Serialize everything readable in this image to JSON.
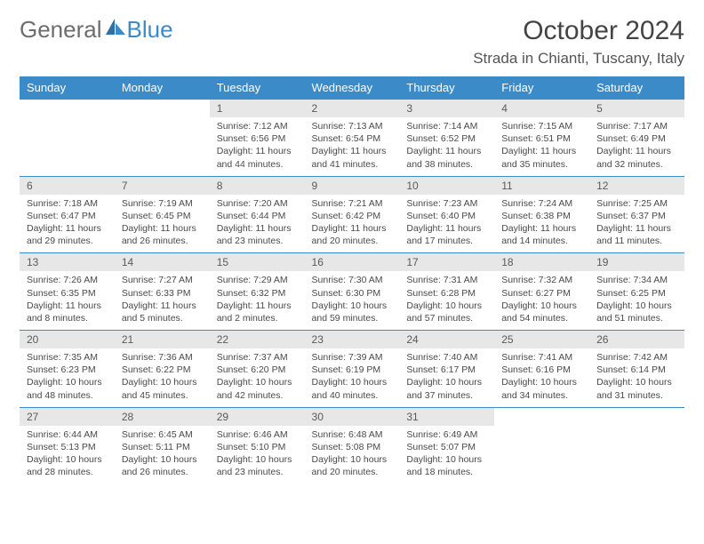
{
  "brand": {
    "word1": "General",
    "word2": "Blue"
  },
  "title": "October 2024",
  "location": "Strada in Chianti, Tuscany, Italy",
  "colors": {
    "header_bg": "#3b8bc9",
    "header_text": "#ffffff",
    "daynum_bg": "#e7e7e7",
    "row_border": "#3b8bc9",
    "brand_gray": "#6d6d6d",
    "brand_blue": "#3b8bc9"
  },
  "weekdays": [
    "Sunday",
    "Monday",
    "Tuesday",
    "Wednesday",
    "Thursday",
    "Friday",
    "Saturday"
  ],
  "weeks": [
    [
      {
        "day": "",
        "sunrise": "",
        "sunset": "",
        "daylight": ""
      },
      {
        "day": "",
        "sunrise": "",
        "sunset": "",
        "daylight": ""
      },
      {
        "day": "1",
        "sunrise": "Sunrise: 7:12 AM",
        "sunset": "Sunset: 6:56 PM",
        "daylight": "Daylight: 11 hours and 44 minutes."
      },
      {
        "day": "2",
        "sunrise": "Sunrise: 7:13 AM",
        "sunset": "Sunset: 6:54 PM",
        "daylight": "Daylight: 11 hours and 41 minutes."
      },
      {
        "day": "3",
        "sunrise": "Sunrise: 7:14 AM",
        "sunset": "Sunset: 6:52 PM",
        "daylight": "Daylight: 11 hours and 38 minutes."
      },
      {
        "day": "4",
        "sunrise": "Sunrise: 7:15 AM",
        "sunset": "Sunset: 6:51 PM",
        "daylight": "Daylight: 11 hours and 35 minutes."
      },
      {
        "day": "5",
        "sunrise": "Sunrise: 7:17 AM",
        "sunset": "Sunset: 6:49 PM",
        "daylight": "Daylight: 11 hours and 32 minutes."
      }
    ],
    [
      {
        "day": "6",
        "sunrise": "Sunrise: 7:18 AM",
        "sunset": "Sunset: 6:47 PM",
        "daylight": "Daylight: 11 hours and 29 minutes."
      },
      {
        "day": "7",
        "sunrise": "Sunrise: 7:19 AM",
        "sunset": "Sunset: 6:45 PM",
        "daylight": "Daylight: 11 hours and 26 minutes."
      },
      {
        "day": "8",
        "sunrise": "Sunrise: 7:20 AM",
        "sunset": "Sunset: 6:44 PM",
        "daylight": "Daylight: 11 hours and 23 minutes."
      },
      {
        "day": "9",
        "sunrise": "Sunrise: 7:21 AM",
        "sunset": "Sunset: 6:42 PM",
        "daylight": "Daylight: 11 hours and 20 minutes."
      },
      {
        "day": "10",
        "sunrise": "Sunrise: 7:23 AM",
        "sunset": "Sunset: 6:40 PM",
        "daylight": "Daylight: 11 hours and 17 minutes."
      },
      {
        "day": "11",
        "sunrise": "Sunrise: 7:24 AM",
        "sunset": "Sunset: 6:38 PM",
        "daylight": "Daylight: 11 hours and 14 minutes."
      },
      {
        "day": "12",
        "sunrise": "Sunrise: 7:25 AM",
        "sunset": "Sunset: 6:37 PM",
        "daylight": "Daylight: 11 hours and 11 minutes."
      }
    ],
    [
      {
        "day": "13",
        "sunrise": "Sunrise: 7:26 AM",
        "sunset": "Sunset: 6:35 PM",
        "daylight": "Daylight: 11 hours and 8 minutes."
      },
      {
        "day": "14",
        "sunrise": "Sunrise: 7:27 AM",
        "sunset": "Sunset: 6:33 PM",
        "daylight": "Daylight: 11 hours and 5 minutes."
      },
      {
        "day": "15",
        "sunrise": "Sunrise: 7:29 AM",
        "sunset": "Sunset: 6:32 PM",
        "daylight": "Daylight: 11 hours and 2 minutes."
      },
      {
        "day": "16",
        "sunrise": "Sunrise: 7:30 AM",
        "sunset": "Sunset: 6:30 PM",
        "daylight": "Daylight: 10 hours and 59 minutes."
      },
      {
        "day": "17",
        "sunrise": "Sunrise: 7:31 AM",
        "sunset": "Sunset: 6:28 PM",
        "daylight": "Daylight: 10 hours and 57 minutes."
      },
      {
        "day": "18",
        "sunrise": "Sunrise: 7:32 AM",
        "sunset": "Sunset: 6:27 PM",
        "daylight": "Daylight: 10 hours and 54 minutes."
      },
      {
        "day": "19",
        "sunrise": "Sunrise: 7:34 AM",
        "sunset": "Sunset: 6:25 PM",
        "daylight": "Daylight: 10 hours and 51 minutes."
      }
    ],
    [
      {
        "day": "20",
        "sunrise": "Sunrise: 7:35 AM",
        "sunset": "Sunset: 6:23 PM",
        "daylight": "Daylight: 10 hours and 48 minutes."
      },
      {
        "day": "21",
        "sunrise": "Sunrise: 7:36 AM",
        "sunset": "Sunset: 6:22 PM",
        "daylight": "Daylight: 10 hours and 45 minutes."
      },
      {
        "day": "22",
        "sunrise": "Sunrise: 7:37 AM",
        "sunset": "Sunset: 6:20 PM",
        "daylight": "Daylight: 10 hours and 42 minutes."
      },
      {
        "day": "23",
        "sunrise": "Sunrise: 7:39 AM",
        "sunset": "Sunset: 6:19 PM",
        "daylight": "Daylight: 10 hours and 40 minutes."
      },
      {
        "day": "24",
        "sunrise": "Sunrise: 7:40 AM",
        "sunset": "Sunset: 6:17 PM",
        "daylight": "Daylight: 10 hours and 37 minutes."
      },
      {
        "day": "25",
        "sunrise": "Sunrise: 7:41 AM",
        "sunset": "Sunset: 6:16 PM",
        "daylight": "Daylight: 10 hours and 34 minutes."
      },
      {
        "day": "26",
        "sunrise": "Sunrise: 7:42 AM",
        "sunset": "Sunset: 6:14 PM",
        "daylight": "Daylight: 10 hours and 31 minutes."
      }
    ],
    [
      {
        "day": "27",
        "sunrise": "Sunrise: 6:44 AM",
        "sunset": "Sunset: 5:13 PM",
        "daylight": "Daylight: 10 hours and 28 minutes."
      },
      {
        "day": "28",
        "sunrise": "Sunrise: 6:45 AM",
        "sunset": "Sunset: 5:11 PM",
        "daylight": "Daylight: 10 hours and 26 minutes."
      },
      {
        "day": "29",
        "sunrise": "Sunrise: 6:46 AM",
        "sunset": "Sunset: 5:10 PM",
        "daylight": "Daylight: 10 hours and 23 minutes."
      },
      {
        "day": "30",
        "sunrise": "Sunrise: 6:48 AM",
        "sunset": "Sunset: 5:08 PM",
        "daylight": "Daylight: 10 hours and 20 minutes."
      },
      {
        "day": "31",
        "sunrise": "Sunrise: 6:49 AM",
        "sunset": "Sunset: 5:07 PM",
        "daylight": "Daylight: 10 hours and 18 minutes."
      },
      {
        "day": "",
        "sunrise": "",
        "sunset": "",
        "daylight": ""
      },
      {
        "day": "",
        "sunrise": "",
        "sunset": "",
        "daylight": ""
      }
    ]
  ]
}
